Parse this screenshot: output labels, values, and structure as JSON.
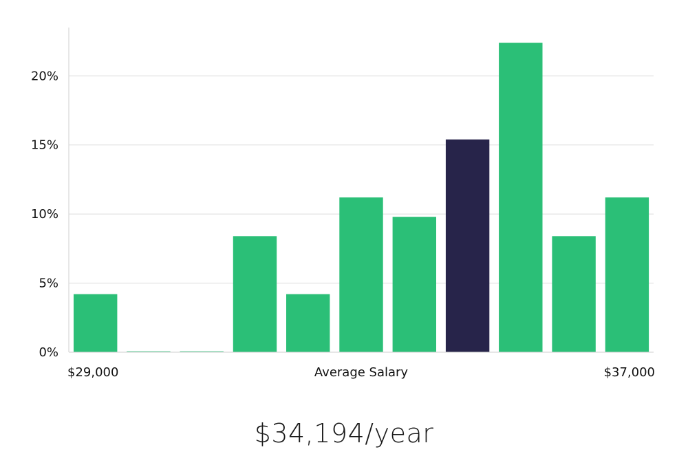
{
  "chart_data": {
    "type": "bar",
    "bar_count": 11,
    "values": [
      4.2,
      0,
      0,
      8.4,
      4.2,
      11.2,
      9.8,
      15.4,
      22.4,
      8.4,
      11.2
    ],
    "highlight_index": 7,
    "y_ticks": [
      "0%",
      "5%",
      "10%",
      "15%",
      "20%"
    ],
    "ylim": [
      0,
      23.5
    ],
    "grid": true,
    "x_min_label": "$29,000",
    "x_center_label": "Average Salary",
    "x_max_label": "$37,000",
    "colors": {
      "bar": "#2bbf77",
      "highlight": "#27244a"
    }
  },
  "headline": "$34,194/year"
}
